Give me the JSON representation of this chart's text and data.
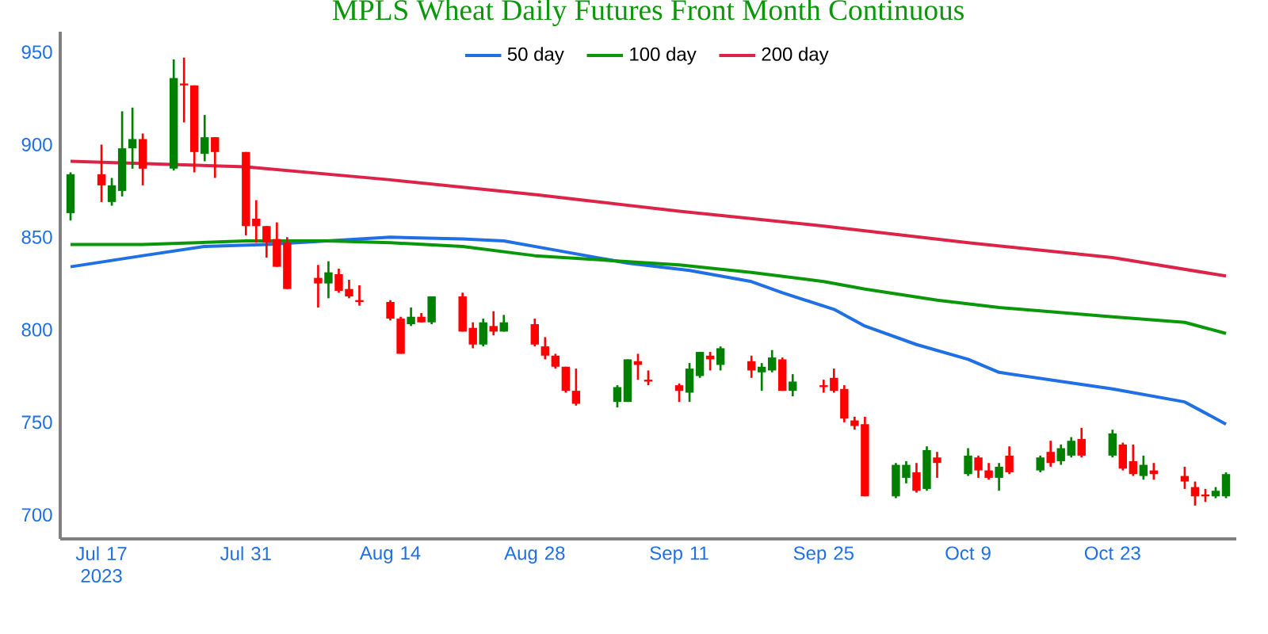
{
  "chart_data": {
    "type": "candlestick",
    "title": "MPLS Wheat Daily Futures Front Month Continuous",
    "x": [
      "2023-07-14",
      "2023-07-17",
      "2023-07-18",
      "2023-07-19",
      "2023-07-20",
      "2023-07-21",
      "2023-07-24",
      "2023-07-25",
      "2023-07-26",
      "2023-07-27",
      "2023-07-28",
      "2023-07-31",
      "2023-08-01",
      "2023-08-02",
      "2023-08-03",
      "2023-08-04",
      "2023-08-07",
      "2023-08-08",
      "2023-08-09",
      "2023-08-10",
      "2023-08-11",
      "2023-08-14",
      "2023-08-15",
      "2023-08-16",
      "2023-08-17",
      "2023-08-18",
      "2023-08-21",
      "2023-08-22",
      "2023-08-23",
      "2023-08-24",
      "2023-08-25",
      "2023-08-28",
      "2023-08-29",
      "2023-08-30",
      "2023-08-31",
      "2023-09-01",
      "2023-09-05",
      "2023-09-06",
      "2023-09-07",
      "2023-09-08",
      "2023-09-11",
      "2023-09-12",
      "2023-09-13",
      "2023-09-14",
      "2023-09-15",
      "2023-09-18",
      "2023-09-19",
      "2023-09-20",
      "2023-09-21",
      "2023-09-22",
      "2023-09-25",
      "2023-09-26",
      "2023-09-27",
      "2023-09-28",
      "2023-09-29",
      "2023-10-02",
      "2023-10-03",
      "2023-10-04",
      "2023-10-05",
      "2023-10-06",
      "2023-10-09",
      "2023-10-10",
      "2023-10-11",
      "2023-10-12",
      "2023-10-13",
      "2023-10-16",
      "2023-10-17",
      "2023-10-18",
      "2023-10-19",
      "2023-10-20",
      "2023-10-23",
      "2023-10-24",
      "2023-10-25",
      "2023-10-26",
      "2023-10-27",
      "2023-10-30",
      "2023-10-31",
      "2023-11-01",
      "2023-11-02",
      "2023-11-03"
    ],
    "ohlc": [
      [
        863,
        885,
        859,
        884
      ],
      [
        884,
        900,
        869,
        878
      ],
      [
        869,
        882,
        867,
        878
      ],
      [
        875,
        918,
        872,
        898
      ],
      [
        898,
        920,
        887,
        903
      ],
      [
        903,
        906,
        878,
        887
      ],
      [
        887,
        946,
        886,
        936
      ],
      [
        933,
        947,
        912,
        932
      ],
      [
        932,
        932,
        885,
        896
      ],
      [
        895,
        916,
        891,
        904
      ],
      [
        904,
        904,
        882,
        896
      ],
      [
        896,
        896,
        851,
        856
      ],
      [
        860,
        870,
        847,
        856
      ],
      [
        856,
        856,
        839,
        847
      ],
      [
        849,
        858,
        834,
        834
      ],
      [
        847,
        850,
        822,
        822
      ],
      [
        828,
        835,
        812,
        825
      ],
      [
        825,
        837,
        817,
        831
      ],
      [
        830,
        833,
        820,
        821
      ],
      [
        822,
        827,
        817,
        818
      ],
      [
        816,
        824,
        813,
        815
      ],
      [
        815,
        816,
        805,
        806
      ],
      [
        806,
        807,
        787,
        787
      ],
      [
        803,
        812,
        802,
        807
      ],
      [
        807,
        809,
        804,
        804
      ],
      [
        804,
        818,
        803,
        818
      ],
      [
        818,
        820,
        799,
        799
      ],
      [
        801,
        804,
        790,
        792
      ],
      [
        792,
        806,
        791,
        804
      ],
      [
        802,
        810,
        797,
        799
      ],
      [
        799,
        808,
        799,
        804
      ],
      [
        803,
        806,
        791,
        792
      ],
      [
        791,
        796,
        784,
        786
      ],
      [
        786,
        787,
        779,
        780
      ],
      [
        780,
        780,
        766,
        767
      ],
      [
        767,
        779,
        759,
        760
      ],
      [
        761,
        770,
        758,
        769
      ],
      [
        761,
        784,
        761,
        784
      ],
      [
        783,
        787,
        773,
        781
      ],
      [
        773,
        778,
        770,
        772
      ],
      [
        770,
        771,
        761,
        767
      ],
      [
        766,
        782,
        761,
        779
      ],
      [
        775,
        788,
        774,
        788
      ],
      [
        786,
        788,
        778,
        784
      ],
      [
        781,
        791,
        778,
        790
      ],
      [
        783,
        786,
        774,
        778
      ],
      [
        777,
        782,
        767,
        780
      ],
      [
        778,
        789,
        777,
        785
      ],
      [
        784,
        785,
        767,
        767
      ],
      [
        767,
        776,
        764,
        772
      ],
      [
        770,
        773,
        766,
        769
      ],
      [
        774,
        779,
        766,
        767
      ],
      [
        768,
        770,
        750,
        752
      ],
      [
        751,
        753,
        746,
        748
      ],
      [
        749,
        753,
        710,
        710
      ],
      [
        710,
        728,
        709,
        727
      ],
      [
        720,
        729,
        717,
        727
      ],
      [
        723,
        728,
        712,
        713
      ],
      [
        714,
        737,
        713,
        735
      ],
      [
        731,
        734,
        720,
        728
      ],
      [
        722,
        736,
        721,
        732
      ],
      [
        731,
        732,
        720,
        724
      ],
      [
        724,
        728,
        719,
        720
      ],
      [
        720,
        728,
        713,
        726
      ],
      [
        732,
        737,
        722,
        723
      ],
      [
        724,
        732,
        723,
        731
      ],
      [
        734,
        740,
        726,
        728
      ],
      [
        729,
        738,
        727,
        736
      ],
      [
        732,
        742,
        731,
        740
      ],
      [
        741,
        747,
        731,
        732
      ],
      [
        732,
        746,
        731,
        744
      ],
      [
        738,
        739,
        724,
        725
      ],
      [
        729,
        738,
        721,
        722
      ],
      [
        721,
        732,
        719,
        727
      ],
      [
        724,
        728,
        719,
        722
      ],
      [
        721,
        726,
        714,
        718
      ],
      [
        715,
        718,
        705,
        710
      ],
      [
        711,
        714,
        707,
        710
      ],
      [
        710,
        715,
        709,
        713
      ],
      [
        710,
        723,
        709,
        722
      ]
    ],
    "colors": [
      "#008000",
      "#ff0000",
      "#008000",
      "#008000",
      "#008000",
      "#ff0000",
      "#008000",
      "#ff0000",
      "#ff0000",
      "#008000",
      "#ff0000",
      "#ff0000",
      "#ff0000",
      "#ff0000",
      "#ff0000",
      "#ff0000",
      "#ff0000",
      "#008000",
      "#ff0000",
      "#ff0000",
      "#ff0000",
      "#ff0000",
      "#ff0000",
      "#008000",
      "#ff0000",
      "#008000",
      "#ff0000",
      "#ff0000",
      "#008000",
      "#ff0000",
      "#008000",
      "#ff0000",
      "#ff0000",
      "#ff0000",
      "#ff0000",
      "#ff0000",
      "#008000",
      "#008000",
      "#ff0000",
      "#ff0000",
      "#ff0000",
      "#008000",
      "#008000",
      "#ff0000",
      "#008000",
      "#ff0000",
      "#008000",
      "#008000",
      "#ff0000",
      "#008000",
      "#ff0000",
      "#ff0000",
      "#ff0000",
      "#ff0000",
      "#ff0000",
      "#008000",
      "#008000",
      "#ff0000",
      "#008000",
      "#ff0000",
      "#008000",
      "#ff0000",
      "#ff0000",
      "#008000",
      "#ff0000",
      "#008000",
      "#ff0000",
      "#008000",
      "#008000",
      "#ff0000",
      "#008000",
      "#ff0000",
      "#ff0000",
      "#008000",
      "#ff0000",
      "#ff0000",
      "#ff0000",
      "#ff0000",
      "#008000",
      "#008000"
    ],
    "series": [
      {
        "type": "line",
        "name": "50 day",
        "color": "#1f6fe5",
        "x": [
          "2023-07-14",
          "2023-07-21",
          "2023-07-27",
          "2023-08-02",
          "2023-08-14",
          "2023-08-21",
          "2023-08-25",
          "2023-08-30",
          "2023-09-06",
          "2023-09-12",
          "2023-09-18",
          "2023-09-21",
          "2023-09-26",
          "2023-09-29",
          "2023-10-04",
          "2023-10-09",
          "2023-10-12",
          "2023-10-23",
          "2023-10-30",
          "2023-11-03"
        ],
        "values": [
          834,
          840,
          845,
          846,
          850,
          849,
          848,
          843,
          836,
          832,
          826,
          820,
          811,
          802,
          792,
          784,
          777,
          768,
          761,
          749
        ]
      },
      {
        "type": "line",
        "name": "100 day",
        "color": "#0a980a",
        "x": [
          "2023-07-14",
          "2023-07-21",
          "2023-07-31",
          "2023-08-08",
          "2023-08-14",
          "2023-08-21",
          "2023-08-28",
          "2023-09-11",
          "2023-09-18",
          "2023-09-25",
          "2023-09-29",
          "2023-10-06",
          "2023-10-12",
          "2023-10-23",
          "2023-10-30",
          "2023-11-03"
        ],
        "values": [
          846,
          846,
          848,
          848,
          847,
          845,
          840,
          835,
          831,
          826,
          822,
          816,
          812,
          807,
          804,
          798
        ]
      },
      {
        "type": "line",
        "name": "200 day",
        "color": "#dc2448",
        "x": [
          "2023-07-14",
          "2023-07-31",
          "2023-08-14",
          "2023-08-28",
          "2023-09-11",
          "2023-09-25",
          "2023-10-09",
          "2023-10-23",
          "2023-11-03"
        ],
        "values": [
          891,
          888,
          881,
          873,
          864,
          856,
          847,
          839,
          829
        ]
      }
    ],
    "xlim": [
      "2023-07-13",
      "2023-11-04"
    ],
    "xticks": [
      {
        "value": "2023-07-17",
        "label": "Jul 17 2023"
      },
      {
        "value": "2023-07-31",
        "label": "Jul 31"
      },
      {
        "value": "2023-08-14",
        "label": "Aug 14"
      },
      {
        "value": "2023-08-28",
        "label": "Aug 28"
      },
      {
        "value": "2023-09-11",
        "label": "Sep 11"
      },
      {
        "value": "2023-09-25",
        "label": "Sep 25"
      },
      {
        "value": "2023-10-09",
        "label": "Oct 9"
      },
      {
        "value": "2023-10-23",
        "label": "Oct 23"
      }
    ],
    "ylim": [
      687,
      961
    ],
    "yticks": [
      700,
      750,
      800,
      850,
      900,
      950
    ],
    "legend": "top"
  }
}
